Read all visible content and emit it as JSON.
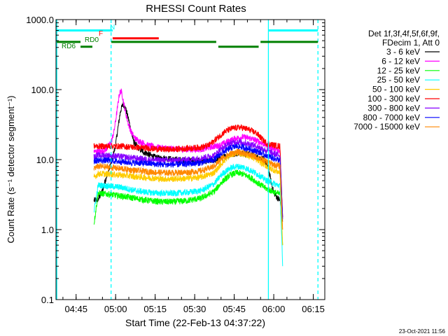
{
  "chart_data": {
    "type": "line",
    "title": "RHESSI Count Rates",
    "xlabel": "Start Time (22-Feb-13 04:37:22)",
    "ylabel": "Count Rate (s⁻¹ detector segment⁻¹)",
    "x_unit": "minutes since 04:37:22",
    "xlim": [
      0,
      102
    ],
    "x_ticks": [
      {
        "x": 7.63,
        "label": "04:45"
      },
      {
        "x": 22.63,
        "label": "05:00"
      },
      {
        "x": 37.63,
        "label": "05:15"
      },
      {
        "x": 52.63,
        "label": "05:30"
      },
      {
        "x": 67.63,
        "label": "05:45"
      },
      {
        "x": 82.63,
        "label": "06:00"
      },
      {
        "x": 97.63,
        "label": "06:15"
      }
    ],
    "y_scale": "log",
    "ylim": [
      0.1,
      1000
    ],
    "y_ticks": [
      {
        "y": 0.1,
        "label": "0.1"
      },
      {
        "y": 1,
        "label": "1.0"
      },
      {
        "y": 10,
        "label": "10.0"
      },
      {
        "y": 100,
        "label": "100.0"
      },
      {
        "y": 1000,
        "label": "1000.0"
      }
    ],
    "legend_header": [
      "Det 1f,3f,4f,5f,6f,9f,",
      "FDecim 1, Att 0"
    ],
    "legend_position": "right",
    "vlines": [
      {
        "x": 0.3,
        "style": "solid",
        "color": "#00ffff"
      },
      {
        "x": 20.9,
        "style": "dashed",
        "color": "#00ffff"
      },
      {
        "x": 80.6,
        "style": "solid",
        "color": "#00ffff"
      },
      {
        "x": 99.4,
        "style": "dashed",
        "color": "#00ffff"
      }
    ],
    "flag_bars": [
      {
        "label": "N",
        "color": "#00ffff",
        "segments": [
          [
            0.3,
            21.5
          ],
          [
            80.6,
            99.4
          ]
        ],
        "y": 700
      },
      {
        "label": "F",
        "color": "#ff0000",
        "segments": [
          [
            21.5,
            39.0
          ]
        ],
        "y": 540
      },
      {
        "label": "RD0",
        "color": "#008000",
        "segments": [
          [
            0.3,
            9.3
          ],
          [
            21.0,
            60.8
          ],
          [
            77.6,
            99.4
          ]
        ],
        "y": 480
      },
      {
        "label": "RD6",
        "color": "#008000",
        "segments": [
          [
            9.3,
            13.8
          ],
          [
            61.6,
            76.9
          ]
        ],
        "y": 410
      }
    ],
    "series": [
      {
        "name": "3 - 6 keV",
        "color": "#000000",
        "x": [
          14.4,
          16.0,
          17.5,
          19.0,
          20.5,
          21.5,
          22.5,
          23.5,
          24.5,
          25.5,
          26.5,
          27.5,
          28.5,
          29.5,
          31.0,
          33.0,
          35.0,
          37.0,
          39.0,
          41.0,
          45.0,
          50.0,
          55.0,
          58.0,
          61.0,
          64.0,
          67.0,
          70.0,
          73.0,
          76.0,
          79.0,
          80.5,
          81.5,
          82.5,
          83.5,
          85.0,
          86.0
        ],
        "y": [
          2.6,
          2.7,
          3.5,
          5.5,
          8.0,
          11.0,
          15.0,
          28.0,
          50.0,
          63.0,
          52.0,
          38.0,
          25.0,
          18.0,
          15.0,
          13.0,
          12.0,
          11.0,
          10.5,
          10.5,
          10.0,
          9.8,
          9.5,
          9.5,
          10.0,
          11.0,
          12.0,
          12.5,
          12.0,
          11.0,
          10.0,
          8.0,
          5.0,
          3.5,
          3.0,
          2.6,
          1.3
        ]
      },
      {
        "name": "6 - 12 keV",
        "color": "#ff00ff",
        "x": [
          14.4,
          17.0,
          19.0,
          21.0,
          22.0,
          23.0,
          24.0,
          24.5,
          25.0,
          25.5,
          26.5,
          27.5,
          28.5,
          30.0,
          32.0,
          35.0,
          38.0,
          42.0,
          48.0,
          55.0,
          62.0,
          65.0,
          68.0,
          71.0,
          74.0,
          77.0,
          80.0,
          81.5,
          83.0,
          85.0,
          86.0
        ],
        "y": [
          13.0,
          13.0,
          14.0,
          18.0,
          25.0,
          45.0,
          85.0,
          95.0,
          90.0,
          70.0,
          45.0,
          32.0,
          25.0,
          20.0,
          18.0,
          16.0,
          15.0,
          14.5,
          14.0,
          14.0,
          16.0,
          18.0,
          20.0,
          21.0,
          20.0,
          18.0,
          16.0,
          15.0,
          14.0,
          13.0,
          1.5
        ]
      },
      {
        "name": "12 - 25 keV",
        "color": "#00ff00",
        "x": [
          14.4,
          16.0,
          20.0,
          25.0,
          30.0,
          35.0,
          40.0,
          45.0,
          50.0,
          55.0,
          60.0,
          63.0,
          66.0,
          68.5,
          71.0,
          74.0,
          77.0,
          80.0,
          83.0,
          85.0,
          86.0
        ],
        "y": [
          1.2,
          3.3,
          3.2,
          3.0,
          2.8,
          2.6,
          2.5,
          2.5,
          2.6,
          2.8,
          3.5,
          4.8,
          6.0,
          6.5,
          6.2,
          5.5,
          4.5,
          3.8,
          3.4,
          3.2,
          0.6
        ]
      },
      {
        "name": "25 - 50 keV",
        "color": "#00ffff",
        "x": [
          14.4,
          16.0,
          20.0,
          25.0,
          30.0,
          35.0,
          40.0,
          45.0,
          50.0,
          55.0,
          60.0,
          63.0,
          66.0,
          68.5,
          71.0,
          74.0,
          77.0,
          80.0,
          83.0,
          85.0,
          86.0
        ],
        "y": [
          1.8,
          4.3,
          4.2,
          4.0,
          3.6,
          3.4,
          3.3,
          3.3,
          3.4,
          3.6,
          4.5,
          6.2,
          7.5,
          8.0,
          7.8,
          7.0,
          6.0,
          5.0,
          4.5,
          4.2,
          0.3
        ]
      },
      {
        "name": "50 - 100 keV",
        "color": "#ffcc00",
        "x": [
          14.4,
          16.0,
          20.0,
          25.0,
          30.0,
          35.0,
          40.0,
          45.0,
          50.0,
          55.0,
          60.0,
          63.0,
          66.0,
          68.5,
          71.0,
          74.0,
          77.0,
          80.0,
          83.0,
          85.0,
          86.0
        ],
        "y": [
          5.5,
          6.3,
          6.2,
          6.0,
          5.7,
          5.5,
          5.3,
          5.3,
          5.4,
          5.6,
          6.5,
          9.0,
          11.5,
          12.5,
          12.0,
          11.0,
          9.5,
          8.0,
          7.0,
          6.5,
          0.6
        ]
      },
      {
        "name": "100 - 300 keV",
        "color": "#ff0000",
        "x": [
          14.4,
          16.0,
          20.0,
          25.0,
          30.0,
          35.0,
          40.0,
          45.0,
          50.0,
          55.0,
          58.0,
          61.0,
          64.0,
          67.0,
          70.0,
          73.0,
          76.0,
          78.0,
          80.0,
          83.0,
          85.0,
          86.0
        ],
        "y": [
          15.5,
          15.5,
          15.5,
          15.5,
          15.0,
          14.5,
          14.0,
          14.0,
          14.5,
          15.0,
          16.0,
          20.0,
          25.0,
          28.0,
          29.0,
          27.0,
          24.0,
          20.0,
          17.0,
          16.0,
          15.5,
          1.5
        ]
      },
      {
        "name": "300 - 800 keV",
        "color": "#8800ff",
        "x": [
          14.4,
          16.0,
          20.0,
          25.0,
          30.0,
          35.0,
          40.0,
          45.0,
          50.0,
          55.0,
          60.0,
          63.0,
          66.0,
          68.5,
          71.0,
          74.0,
          77.0,
          80.0,
          83.0,
          85.0,
          86.0
        ],
        "y": [
          11.0,
          11.5,
          11.5,
          11.0,
          10.5,
          10.0,
          9.8,
          9.8,
          10.0,
          10.5,
          11.5,
          14.5,
          17.0,
          18.0,
          17.5,
          16.5,
          15.0,
          13.5,
          12.0,
          11.5,
          1.5
        ]
      },
      {
        "name": "800 - 7000 keV",
        "color": "#0000ff",
        "x": [
          14.4,
          16.0,
          20.0,
          25.0,
          30.0,
          35.0,
          40.0,
          45.0,
          50.0,
          55.0,
          60.0,
          63.0,
          66.0,
          68.5,
          71.0,
          74.0,
          77.0,
          80.0,
          83.0,
          85.0,
          86.0
        ],
        "y": [
          9.5,
          9.8,
          9.7,
          9.3,
          9.0,
          8.8,
          8.5,
          8.5,
          8.7,
          9.0,
          10.0,
          12.5,
          14.5,
          15.5,
          15.0,
          14.0,
          12.8,
          11.5,
          10.3,
          9.8,
          1.4
        ]
      },
      {
        "name": "7000 - 15000 keV",
        "color": "#ff8800",
        "x": [
          14.4,
          16.0,
          20.0,
          25.0,
          30.0,
          35.0,
          40.0,
          45.0,
          50.0,
          55.0,
          60.0,
          63.0,
          66.0,
          68.5,
          71.0,
          74.0,
          77.0,
          80.0,
          83.0,
          85.0,
          86.0
        ],
        "y": [
          7.5,
          8.0,
          7.8,
          7.4,
          7.0,
          6.7,
          6.5,
          6.5,
          6.6,
          6.9,
          8.0,
          10.5,
          12.0,
          12.8,
          12.5,
          11.5,
          10.5,
          9.3,
          8.4,
          8.0,
          1.0
        ]
      }
    ],
    "footer_date": "23-Oct-2021 11:56"
  }
}
